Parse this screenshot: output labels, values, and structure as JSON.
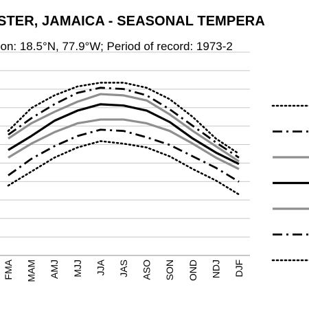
{
  "chart_data": {
    "type": "line",
    "title": "STER, JAMAICA - SEASONAL TEMPERA",
    "subtitle": "tion: 18.5°N, 77.9°W; Period of record: 1973-2",
    "categories": [
      "FMA",
      "MAM",
      "AMJ",
      "MJJ",
      "JJA",
      "JAS",
      "ASO",
      "SON",
      "OND",
      "NDJ",
      "DJF"
    ],
    "grid": true,
    "legend_position": "right",
    "series": [
      {
        "style": "dotted-black",
        "values": [
          9.8,
          11.6,
          12.6,
          13.3,
          13.6,
          13.6,
          13.2,
          12.3,
          10.9,
          9.2,
          8.0
        ]
      },
      {
        "style": "dashdot-black",
        "values": [
          9.5,
          10.8,
          11.9,
          12.8,
          13.2,
          13.1,
          12.6,
          11.5,
          10.2,
          8.9,
          7.7
        ]
      },
      {
        "style": "solid-gray",
        "values": [
          9.2,
          10.4,
          11.3,
          12.1,
          12.7,
          12.6,
          12.2,
          11.1,
          9.8,
          8.6,
          7.4
        ]
      },
      {
        "style": "solid-black",
        "values": [
          8.3,
          9.4,
          10.6,
          11.4,
          11.9,
          11.8,
          11.4,
          10.5,
          9.2,
          8.1,
          7.2
        ]
      },
      {
        "style": "solid-gray",
        "values": [
          7.7,
          8.8,
          9.7,
          10.4,
          10.7,
          10.7,
          10.4,
          9.8,
          8.8,
          7.7,
          6.8
        ]
      },
      {
        "style": "dashdot-black",
        "values": [
          6.3,
          7.6,
          8.6,
          9.4,
          9.9,
          9.8,
          9.3,
          8.7,
          7.8,
          6.9,
          5.8
        ]
      },
      {
        "style": "dotted-black",
        "values": [
          5.5,
          6.6,
          7.7,
          8.5,
          9.0,
          8.8,
          8.5,
          7.8,
          6.8,
          5.9,
          4.8
        ]
      }
    ]
  }
}
